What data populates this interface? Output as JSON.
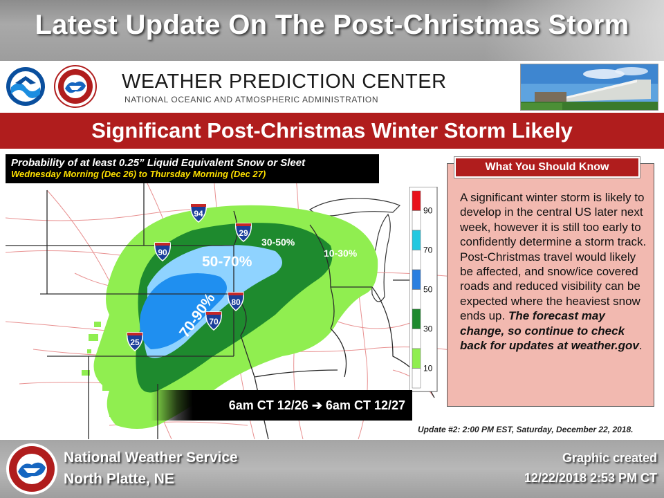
{
  "header": {
    "title": "Latest Update On The Post-Christmas Storm"
  },
  "wpc": {
    "title": "WEATHER PREDICTION CENTER",
    "subtitle": "NATIONAL OCEANIC AND ATMOSPHERIC ADMINISTRATION",
    "noaa_logo_text": "NOAA",
    "nws_logo_text": "NATIONAL WEATHER SERVICE"
  },
  "banner": {
    "title": "Significant Post-Christmas Winter Storm Likely"
  },
  "probability": {
    "title": "Probability of at least 0.25” Liquid Equivalent Snow or Sleet",
    "period": "Wednesday Morning (Dec 26) to Thursday Morning (Dec 27)"
  },
  "map": {
    "zones": [
      {
        "label": "70-90%",
        "color": "#1f8ff0"
      },
      {
        "label": "50-70%",
        "color": "#8fd3ff"
      },
      {
        "label": "30-50%",
        "color": "#1e8a2e"
      },
      {
        "label": "10-30%",
        "color": "#8fe85a"
      }
    ],
    "highways": [
      "94",
      "29",
      "90",
      "80",
      "70",
      "25"
    ]
  },
  "legend": {
    "ticks": [
      "90",
      "70",
      "50",
      "30",
      "10"
    ],
    "colors": [
      "#e8121b",
      "#ffffff",
      "#22c8e0",
      "#ffffff",
      "#2a7fe0",
      "#ffffff",
      "#1e8a2e",
      "#ffffff",
      "#90ee50",
      "#ffffff"
    ]
  },
  "what_you_should_know": {
    "header": "What You Should Know",
    "body": "A significant winter storm is likely to develop in the central US later next week, however it is still too early to confidently determine a storm track. Post-Christmas travel would likely be affected, and snow/ice covered roads and reduced visibility can be expected where the heaviest snow ends up.",
    "emphasis": "The forecast may change, so continue to check back for updates at weather.gov",
    "end": "."
  },
  "time_window": {
    "start": "6am CT 12/26",
    "arrow": "➔",
    "end": "6am CT 12/27"
  },
  "update_note": "Update #2: 2:00 PM EST, Saturday, December 22, 2018.",
  "footer": {
    "office_name": "National Weather Service",
    "office_location": "North Platte, NE",
    "created_label": "Graphic created",
    "created_time": "12/22/2018 2:53 PM CT"
  }
}
